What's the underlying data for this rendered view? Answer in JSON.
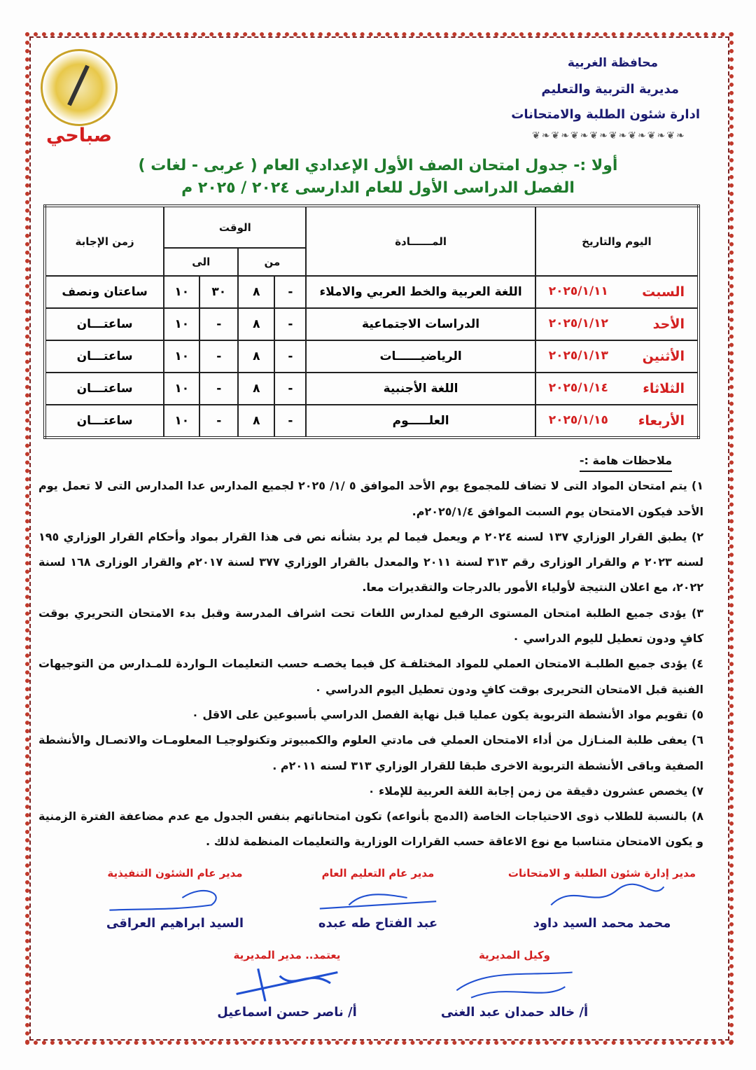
{
  "header": {
    "governorate": "محافظة الغربية",
    "directorate": "مديرية التربية والتعليم",
    "department": "ادارة شئون الطلبة والامتحانات",
    "shift": "صباحي"
  },
  "title": {
    "line1": "أولا :- جدول امتحان الصف الأول الإعدادي العام ( عربى - لغات )",
    "line2": "الفصل الدراسى الأول للعام الدارسى ٢٠٢٤ / ٢٠٢٥ م"
  },
  "table": {
    "headers": {
      "day_date": "اليوم والتاريخ",
      "subject": "المــــــادة",
      "time": "الوقت",
      "from": "من",
      "to": "الى",
      "duration": "زمن الإجابة"
    },
    "rows": [
      {
        "day": "السبت",
        "date": "٢٠٢٥/١/١١",
        "subject": "اللغة العربية والخط العربي والاملاء",
        "from_min": "-",
        "from_hr": "٨",
        "to_min": "٣٠",
        "to_hr": "١٠",
        "duration": "ساعتان ونصف"
      },
      {
        "day": "الأحد",
        "date": "٢٠٢٥/١/١٢",
        "subject": "الدراسات الاجتماعية",
        "from_min": "-",
        "from_hr": "٨",
        "to_min": "-",
        "to_hr": "١٠",
        "duration": "ساعتـــان"
      },
      {
        "day": "الأثنين",
        "date": "٢٠٢٥/١/١٣",
        "subject": "الرياضيــــــات",
        "from_min": "-",
        "from_hr": "٨",
        "to_min": "-",
        "to_hr": "١٠",
        "duration": "ساعتـــان"
      },
      {
        "day": "الثلاثاء",
        "date": "٢٠٢٥/١/١٤",
        "subject": "اللغة الأجنبية",
        "from_min": "-",
        "from_hr": "٨",
        "to_min": "-",
        "to_hr": "١٠",
        "duration": "ساعتـــان"
      },
      {
        "day": "الأربعاء",
        "date": "٢٠٢٥/١/١٥",
        "subject": "العلـــــوم",
        "from_min": "-",
        "from_hr": "٨",
        "to_min": "-",
        "to_hr": "١٠",
        "duration": "ساعتـــان"
      }
    ]
  },
  "notes": {
    "heading": "ملاحظات هامة :-",
    "items": [
      "١) يتم امتحان المواد التى لا تضاف للمجموع يوم الأحد الموافق ٥ /١/ ٢٠٢٥ لجميع المدارس عدا المدارس التى لا تعمل يوم الأحد فيكون الامتحان يوم السبت الموافق ٢٠٢٥/١/٤م.",
      "٢) يطبق القرار الوزاري ١٣٧ لسنه ٢٠٢٤ م ويعمل فيما لم يرد بشأنه نص فى هذا القرار بمواد وأحكام القرار الوزاري ١٩٥ لسنه ٢٠٢٣ م والقرار الوزارى رقم ٣١٣ لسنة ٢٠١١ والمعدل بالقرار الوزاري ٣٧٧ لسنة ٢٠١٧م والقرار الوزارى ١٦٨ لسنة ٢٠٢٢، مع اعلان النتيجة لأولياء الأمور بالدرجات والتقديرات معا.",
      "٣) يؤدى جميع الطلبة امتحان المستوى الرفيع لمدارس اللغات تحت اشراف المدرسة وقبل بدء الامتحان التحريري بوقت كافٍ ودون تعطيل لليوم الدراسي ٠",
      "٤) يؤدى جميع الطلبـة الامتحان العملي للمواد المختلفـة كل فيما يخصـه حسب التعليمات الـواردة للمـدارس من التوجيهات الفنية قبل الامتحان التحريرى بوقت كافٍ ودون تعطيل اليوم الدراسي ٠",
      "٥) تقويم مواد الأنشطة التربوية يكون عمليا قبل نهاية الفصل الدراسي بأسبوعين على الاقل ٠",
      "٦) يعفى طلبة المنـازل من أداء الامتحان العملي فى مادتي العلوم والكمبيوتر وتكنولوجيـا المعلومـات والاتصـال والأنشطة الصفية وباقى الأنشطة التربوية الاخرى طبقا للقرار الوزاري ٣١٣ لسنه ٢٠١١م .",
      "٧) يخصص عشرون دقيقة من زمن إجابة اللغة العربية للإملاء ٠",
      "٨) بالنسبة للطلاب ذوى الاحتياجات الخاصة (الدمج بأنواعه) تكون امتحاناتهم بنفس الجدول مع عدم مضاعفة الفترة الزمنية و يكون الامتحان متناسبا مع نوع الاعاقة حسب القرارات الوزارية والتعليمات المنظمة لذلك ."
    ]
  },
  "signatures": [
    {
      "title": "مدير إدارة شئون الطلبة و الامتحانات",
      "name": "محمد محمد السيد داود"
    },
    {
      "title": "مدير عام التعليم العام",
      "name": "عبد الفتاح طه عبده"
    },
    {
      "title": "مدير عام الشئون التنفيذية",
      "name": "السيد ابراهيم العراقى"
    },
    {
      "title": "وكيل المديرية",
      "name": "أ/ خالد حمدان عبد الغنى"
    },
    {
      "title": "يعتمد.. مدير المديرية",
      "name": "أ/ ناصر حسن اسماعيل"
    }
  ],
  "colors": {
    "header": "#1a1a70",
    "title": "#1d7a2a",
    "accent_red": "#d31f1f",
    "signature_ink": "#1f4fd1"
  }
}
